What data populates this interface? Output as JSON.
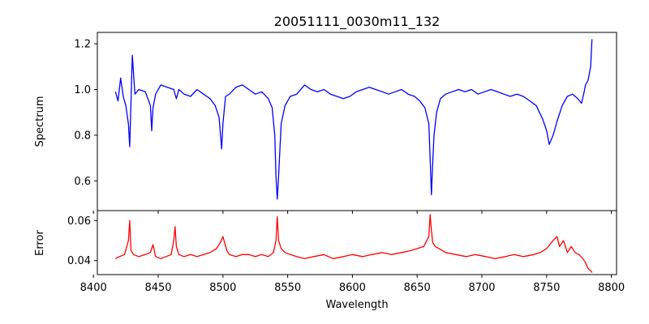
{
  "chart_data": [
    {
      "type": "line",
      "title": "20051111_0030m11_132",
      "xlabel": "",
      "ylabel": "Spectrum",
      "xlim": [
        8403,
        8804
      ],
      "ylim": [
        0.47,
        1.25
      ],
      "x_ticks": [
        8400,
        8450,
        8500,
        8550,
        8600,
        8650,
        8700,
        8750,
        8800
      ],
      "y_ticks": [
        0.6,
        0.8,
        1.0,
        1.2
      ],
      "y_tick_labels": [
        "0.6",
        "0.8",
        "1.0",
        "1.2"
      ],
      "grid": false,
      "color": "#0000ff",
      "series": [
        {
          "x": [
            8417,
            8419,
            8421,
            8423,
            8425,
            8427,
            8428,
            8429,
            8430,
            8432,
            8435,
            8440,
            8444,
            8445,
            8446,
            8448,
            8452,
            8457,
            8462,
            8464,
            8466,
            8470,
            8475,
            8480,
            8485,
            8490,
            8494,
            8497,
            8499,
            8500,
            8502,
            8505,
            8510,
            8515,
            8520,
            8525,
            8530,
            8535,
            8538,
            8540,
            8541,
            8542,
            8543,
            8545,
            8548,
            8552,
            8557,
            8563,
            8568,
            8573,
            8578,
            8583,
            8588,
            8593,
            8598,
            8603,
            8608,
            8613,
            8618,
            8623,
            8628,
            8633,
            8638,
            8643,
            8648,
            8652,
            8656,
            8659,
            8660,
            8661,
            8662,
            8663,
            8665,
            8668,
            8672,
            8677,
            8682,
            8687,
            8692,
            8697,
            8702,
            8707,
            8712,
            8717,
            8722,
            8727,
            8732,
            8737,
            8742,
            8747,
            8750,
            8752,
            8755,
            8758,
            8762,
            8766,
            8770,
            8774,
            8777,
            8779,
            8780,
            8782,
            8784,
            8785
          ],
          "y": [
            0.99,
            0.95,
            1.05,
            0.97,
            0.93,
            0.85,
            0.75,
            0.95,
            1.15,
            0.98,
            1.0,
            0.99,
            0.93,
            0.82,
            0.92,
            0.98,
            1.02,
            1.01,
            1.0,
            0.96,
            1.0,
            0.98,
            0.97,
            1.0,
            0.98,
            0.96,
            0.93,
            0.88,
            0.74,
            0.85,
            0.97,
            0.98,
            1.01,
            1.02,
            1.0,
            0.98,
            0.99,
            0.96,
            0.92,
            0.8,
            0.62,
            0.52,
            0.62,
            0.85,
            0.93,
            0.97,
            0.98,
            1.02,
            1.0,
            0.99,
            1.0,
            0.98,
            0.97,
            0.96,
            0.97,
            0.99,
            1.0,
            1.01,
            1.0,
            0.99,
            0.98,
            0.99,
            1.0,
            0.98,
            0.97,
            0.95,
            0.92,
            0.85,
            0.7,
            0.54,
            0.68,
            0.8,
            0.9,
            0.96,
            0.98,
            0.99,
            1.0,
            0.99,
            1.0,
            0.98,
            0.99,
            1.0,
            0.99,
            0.98,
            0.97,
            0.98,
            0.97,
            0.95,
            0.93,
            0.87,
            0.82,
            0.76,
            0.8,
            0.86,
            0.93,
            0.97,
            0.98,
            0.96,
            0.94,
            0.99,
            1.02,
            1.04,
            1.1,
            1.22
          ]
        }
      ]
    },
    {
      "type": "line",
      "title": "",
      "xlabel": "Wavelength",
      "ylabel": "Error",
      "xlim": [
        8403,
        8804
      ],
      "ylim": [
        0.033,
        0.065
      ],
      "x_ticks": [
        8400,
        8450,
        8500,
        8550,
        8600,
        8650,
        8700,
        8750,
        8800
      ],
      "x_tick_labels": [
        "8400",
        "8450",
        "8500",
        "8550",
        "8600",
        "8650",
        "8700",
        "8750",
        "8800"
      ],
      "y_ticks": [
        0.04,
        0.06
      ],
      "y_tick_labels": [
        "0.04",
        "0.06"
      ],
      "grid": false,
      "color": "#ff0000",
      "series": [
        {
          "x": [
            8417,
            8420,
            8424,
            8427,
            8428,
            8429,
            8431,
            8435,
            8440,
            8444,
            8446,
            8448,
            8452,
            8456,
            8460,
            8462,
            8463,
            8464,
            8466,
            8470,
            8475,
            8480,
            8485,
            8490,
            8495,
            8498,
            8500,
            8503,
            8505,
            8510,
            8515,
            8520,
            8525,
            8530,
            8535,
            8539,
            8541,
            8542,
            8543,
            8545,
            8548,
            8552,
            8557,
            8563,
            8570,
            8578,
            8585,
            8593,
            8600,
            8608,
            8615,
            8623,
            8630,
            8638,
            8645,
            8650,
            8655,
            8659,
            8660,
            8661,
            8662,
            8664,
            8667,
            8672,
            8680,
            8688,
            8695,
            8703,
            8710,
            8718,
            8725,
            8732,
            8740,
            8745,
            8750,
            8755,
            8758,
            8760,
            8763,
            8766,
            8769,
            8772,
            8775,
            8778,
            8780,
            8782,
            8784,
            8785
          ],
          "y": [
            0.041,
            0.042,
            0.043,
            0.05,
            0.06,
            0.045,
            0.043,
            0.042,
            0.043,
            0.044,
            0.048,
            0.042,
            0.041,
            0.042,
            0.043,
            0.05,
            0.057,
            0.047,
            0.043,
            0.042,
            0.043,
            0.042,
            0.043,
            0.044,
            0.046,
            0.049,
            0.052,
            0.045,
            0.043,
            0.042,
            0.043,
            0.043,
            0.042,
            0.043,
            0.042,
            0.044,
            0.05,
            0.062,
            0.05,
            0.046,
            0.044,
            0.043,
            0.042,
            0.041,
            0.042,
            0.043,
            0.041,
            0.042,
            0.043,
            0.042,
            0.043,
            0.044,
            0.043,
            0.044,
            0.045,
            0.046,
            0.047,
            0.052,
            0.063,
            0.055,
            0.049,
            0.047,
            0.046,
            0.044,
            0.043,
            0.042,
            0.043,
            0.042,
            0.041,
            0.042,
            0.043,
            0.042,
            0.043,
            0.044,
            0.046,
            0.05,
            0.052,
            0.047,
            0.05,
            0.044,
            0.047,
            0.044,
            0.043,
            0.041,
            0.039,
            0.036,
            0.035,
            0.034
          ]
        }
      ]
    }
  ]
}
